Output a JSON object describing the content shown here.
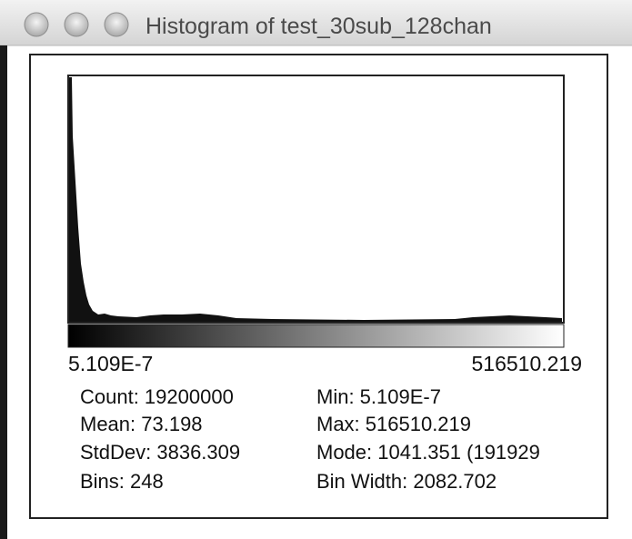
{
  "window": {
    "title": "Histogram of test_30sub_128chan"
  },
  "histogram": {
    "min_label": "5.109E-7",
    "max_label": "516510.219"
  },
  "stats": {
    "left": [
      "Count: 19200000",
      "Mean: 73.198",
      "StdDev: 3836.309",
      "Bins: 248"
    ],
    "right": [
      "Min: 5.109E-7",
      "Max: 516510.219",
      "Mode: 1041.351 (191929",
      "Bin Width: 2082.702"
    ]
  }
}
